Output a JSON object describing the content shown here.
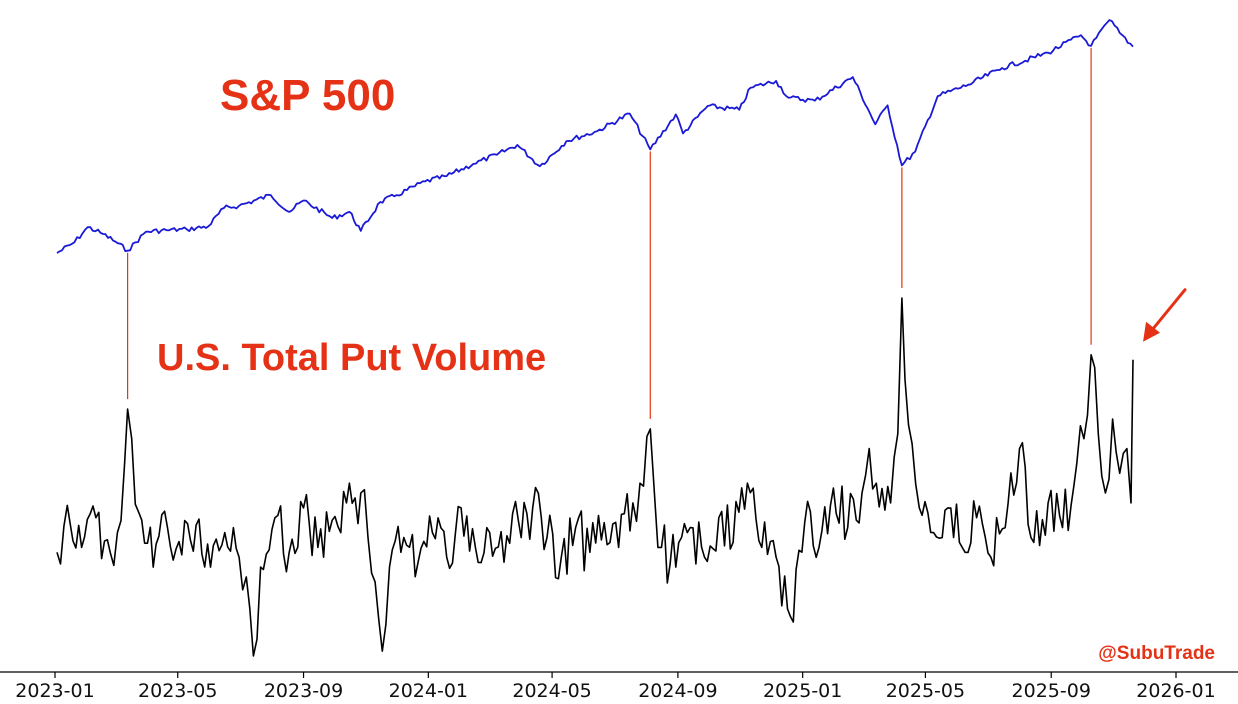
{
  "chart_data": {
    "type": "line",
    "title": "",
    "xlabel": "",
    "ylabel": "",
    "grid": false,
    "legend": "none",
    "x_range": [
      "2023-01-01",
      "2026-01-15"
    ],
    "x_ticks": [
      "2023-01",
      "2023-05",
      "2023-09",
      "2024-01",
      "2024-05",
      "2024-09",
      "2025-01",
      "2025-05",
      "2025-09",
      "2026-01"
    ],
    "colors": {
      "sp500": "#1a1ad6",
      "put_volume": "#000000",
      "annotation": "#e53216",
      "axis": "#000000"
    },
    "series": [
      {
        "name": "S&P 500",
        "key": "sp500",
        "unit": "index level",
        "points": [
          [
            "2023-01-03",
            3830
          ],
          [
            "2023-01-20",
            3970
          ],
          [
            "2023-02-02",
            4170
          ],
          [
            "2023-02-17",
            4080
          ],
          [
            "2023-03-01",
            3980
          ],
          [
            "2023-03-13",
            3860
          ],
          [
            "2023-03-31",
            4110
          ],
          [
            "2023-04-20",
            4130
          ],
          [
            "2023-05-10",
            4140
          ],
          [
            "2023-05-31",
            4180
          ],
          [
            "2023-06-15",
            4420
          ],
          [
            "2023-06-30",
            4450
          ],
          [
            "2023-07-31",
            4590
          ],
          [
            "2023-08-18",
            4370
          ],
          [
            "2023-09-01",
            4520
          ],
          [
            "2023-09-29",
            4290
          ],
          [
            "2023-10-16",
            4370
          ],
          [
            "2023-10-27",
            4120
          ],
          [
            "2023-11-15",
            4500
          ],
          [
            "2023-12-01",
            4590
          ],
          [
            "2023-12-29",
            4770
          ],
          [
            "2024-01-19",
            4840
          ],
          [
            "2024-02-14",
            5000
          ],
          [
            "2024-03-08",
            5120
          ],
          [
            "2024-03-28",
            5250
          ],
          [
            "2024-04-19",
            4970
          ],
          [
            "2024-05-15",
            5300
          ],
          [
            "2024-06-14",
            5430
          ],
          [
            "2024-07-16",
            5660
          ],
          [
            "2024-08-05",
            5190
          ],
          [
            "2024-08-30",
            5650
          ],
          [
            "2024-09-06",
            5400
          ],
          [
            "2024-09-30",
            5760
          ],
          [
            "2024-10-31",
            5710
          ],
          [
            "2024-11-11",
            6000
          ],
          [
            "2024-12-06",
            6090
          ],
          [
            "2024-12-18",
            5870
          ],
          [
            "2025-01-13",
            5830
          ],
          [
            "2025-02-19",
            6140
          ],
          [
            "2025-03-13",
            5520
          ],
          [
            "2025-03-25",
            5770
          ],
          [
            "2025-04-08",
            4980
          ],
          [
            "2025-04-21",
            5160
          ],
          [
            "2025-05-13",
            5890
          ],
          [
            "2025-06-12",
            6040
          ],
          [
            "2025-07-15",
            6260
          ],
          [
            "2025-08-29",
            6460
          ],
          [
            "2025-09-30",
            6690
          ],
          [
            "2025-10-10",
            6550
          ],
          [
            "2025-10-28",
            6890
          ],
          [
            "2025-11-07",
            6720
          ],
          [
            "2025-11-20",
            6540
          ]
        ]
      },
      {
        "name": "U.S. Total Put Volume",
        "key": "put_volume",
        "unit": "relative volume",
        "points": [
          [
            "2023-01-03",
            0.42
          ],
          [
            "2023-01-13",
            0.61
          ],
          [
            "2023-01-27",
            0.44
          ],
          [
            "2023-02-10",
            0.56
          ],
          [
            "2023-02-24",
            0.42
          ],
          [
            "2023-03-03",
            0.5
          ],
          [
            "2023-03-10",
            0.78
          ],
          [
            "2023-03-13",
            1.0
          ],
          [
            "2023-03-17",
            0.88
          ],
          [
            "2023-03-24",
            0.58
          ],
          [
            "2023-04-07",
            0.36
          ],
          [
            "2023-04-21",
            0.52
          ],
          [
            "2023-05-05",
            0.41
          ],
          [
            "2023-05-19",
            0.53
          ],
          [
            "2023-06-02",
            0.36
          ],
          [
            "2023-06-16",
            0.5
          ],
          [
            "2023-06-30",
            0.4
          ],
          [
            "2023-07-07",
            0.32
          ],
          [
            "2023-07-14",
            0.0
          ],
          [
            "2023-07-21",
            0.36
          ],
          [
            "2023-08-04",
            0.56
          ],
          [
            "2023-08-18",
            0.42
          ],
          [
            "2023-09-01",
            0.6
          ],
          [
            "2023-09-15",
            0.44
          ],
          [
            "2023-09-29",
            0.55
          ],
          [
            "2023-10-13",
            0.62
          ],
          [
            "2023-10-27",
            0.66
          ],
          [
            "2023-11-03",
            0.48
          ],
          [
            "2023-11-10",
            0.3
          ],
          [
            "2023-11-17",
            0.02
          ],
          [
            "2023-11-24",
            0.36
          ],
          [
            "2023-12-08",
            0.48
          ],
          [
            "2023-12-22",
            0.38
          ],
          [
            "2024-01-05",
            0.5
          ],
          [
            "2024-01-19",
            0.4
          ],
          [
            "2024-02-02",
            0.6
          ],
          [
            "2024-02-16",
            0.44
          ],
          [
            "2024-03-01",
            0.5
          ],
          [
            "2024-03-15",
            0.38
          ],
          [
            "2024-03-29",
            0.55
          ],
          [
            "2024-04-12",
            0.6
          ],
          [
            "2024-04-26",
            0.48
          ],
          [
            "2024-05-10",
            0.4
          ],
          [
            "2024-05-24",
            0.52
          ],
          [
            "2024-06-07",
            0.42
          ],
          [
            "2024-06-21",
            0.54
          ],
          [
            "2024-07-05",
            0.44
          ],
          [
            "2024-07-19",
            0.62
          ],
          [
            "2024-07-26",
            0.7
          ],
          [
            "2024-08-05",
            0.92
          ],
          [
            "2024-08-09",
            0.66
          ],
          [
            "2024-08-16",
            0.44
          ],
          [
            "2024-08-30",
            0.36
          ],
          [
            "2024-09-13",
            0.52
          ],
          [
            "2024-09-27",
            0.4
          ],
          [
            "2024-10-11",
            0.56
          ],
          [
            "2024-10-25",
            0.46
          ],
          [
            "2024-11-08",
            0.7
          ],
          [
            "2024-11-22",
            0.44
          ],
          [
            "2024-12-06",
            0.4
          ],
          [
            "2024-12-20",
            0.16
          ],
          [
            "2025-01-03",
            0.54
          ],
          [
            "2025-01-17",
            0.44
          ],
          [
            "2025-01-31",
            0.68
          ],
          [
            "2025-02-14",
            0.52
          ],
          [
            "2025-02-28",
            0.66
          ],
          [
            "2025-03-07",
            0.84
          ],
          [
            "2025-03-14",
            0.7
          ],
          [
            "2025-03-28",
            0.62
          ],
          [
            "2025-04-04",
            0.9
          ],
          [
            "2025-04-08",
            1.45
          ],
          [
            "2025-04-11",
            1.12
          ],
          [
            "2025-04-18",
            0.86
          ],
          [
            "2025-04-25",
            0.6
          ],
          [
            "2025-05-09",
            0.5
          ],
          [
            "2025-05-23",
            0.6
          ],
          [
            "2025-06-06",
            0.44
          ],
          [
            "2025-06-20",
            0.56
          ],
          [
            "2025-07-04",
            0.4
          ],
          [
            "2025-07-18",
            0.52
          ],
          [
            "2025-08-01",
            0.84
          ],
          [
            "2025-08-15",
            0.46
          ],
          [
            "2025-08-29",
            0.62
          ],
          [
            "2025-09-12",
            0.52
          ],
          [
            "2025-09-26",
            0.78
          ],
          [
            "2025-10-03",
            0.88
          ],
          [
            "2025-10-10",
            1.22
          ],
          [
            "2025-10-17",
            0.9
          ],
          [
            "2025-10-24",
            0.66
          ],
          [
            "2025-10-31",
            0.96
          ],
          [
            "2025-11-07",
            0.74
          ],
          [
            "2025-11-14",
            0.84
          ],
          [
            "2025-11-18",
            0.62
          ],
          [
            "2025-11-20",
            1.2
          ]
        ]
      }
    ],
    "annotations": [
      {
        "type": "vertical-line",
        "date": "2023-03-13",
        "label": ""
      },
      {
        "type": "vertical-line",
        "date": "2024-08-05",
        "label": ""
      },
      {
        "type": "vertical-line",
        "date": "2025-04-08",
        "label": ""
      },
      {
        "type": "vertical-line",
        "date": "2025-10-10",
        "label": ""
      },
      {
        "type": "arrow",
        "date": "2025-11-20",
        "label": ""
      }
    ],
    "labels": {
      "sp500": "S&P 500",
      "put_volume": "U.S. Total Put Volume"
    },
    "credit": "@SubuTrade"
  }
}
